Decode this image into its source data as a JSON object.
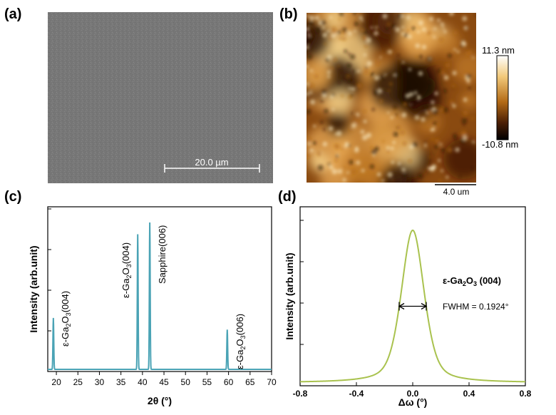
{
  "panels": {
    "a": {
      "label": "(a)",
      "scale_bar": "20.0 µm"
    },
    "b": {
      "label": "(b)",
      "scale_bar": "4.0 um",
      "colorbar_max": "11.3 nm",
      "colorbar_min": "-10.8 nm"
    },
    "c": {
      "label": "(c)"
    },
    "d": {
      "label": "(d)"
    }
  },
  "chart_data": [
    {
      "panel": "c",
      "type": "line",
      "title": "",
      "xlabel": "2θ (°)",
      "ylabel": "Intensity (arb.unit)",
      "xlim": [
        18,
        70
      ],
      "xticks": [
        20,
        25,
        30,
        35,
        40,
        45,
        50,
        55,
        60,
        65,
        70
      ],
      "ylim": [
        0,
        1
      ],
      "y_ticks_labeled": false,
      "color": "#4aa3b5",
      "peaks": [
        {
          "x": 19.3,
          "y": 0.35,
          "label_base": "ε-Ga",
          "label_sub1": "2",
          "label_mid": "O",
          "label_sub2": "3",
          "label_end": "(004)"
        },
        {
          "x": 38.9,
          "y": 0.92,
          "label_base": "ε-Ga",
          "label_sub1": "2",
          "label_mid": "O",
          "label_sub2": "3",
          "label_end": "(004)"
        },
        {
          "x": 41.7,
          "y": 1.0,
          "label_plain": "Sapphire(006)"
        },
        {
          "x": 59.7,
          "y": 0.27,
          "label_base": "ε-Ga",
          "label_sub1": "2",
          "label_mid": "O",
          "label_sub2": "3",
          "label_end": "(006)"
        }
      ]
    },
    {
      "panel": "d",
      "type": "line",
      "title": "",
      "xlabel": "Δω (°)",
      "ylabel": "Intensity (arb.unit)",
      "xlim": [
        -0.8,
        0.8
      ],
      "xticks": [
        -0.8,
        -0.4,
        0.0,
        0.4,
        0.8
      ],
      "y_ticks_labeled": false,
      "color": "#a9c24e",
      "peak_center": 0.0,
      "peak_max": 1.0,
      "fwhm_deg": 0.1924,
      "annotation_title_base": "ε-Ga",
      "annotation_title_sub1": "2",
      "annotation_title_mid": "O",
      "annotation_title_sub2": "3",
      "annotation_title_end": " (004)",
      "fwhm_label": "FWHM = 0.1924°"
    }
  ]
}
